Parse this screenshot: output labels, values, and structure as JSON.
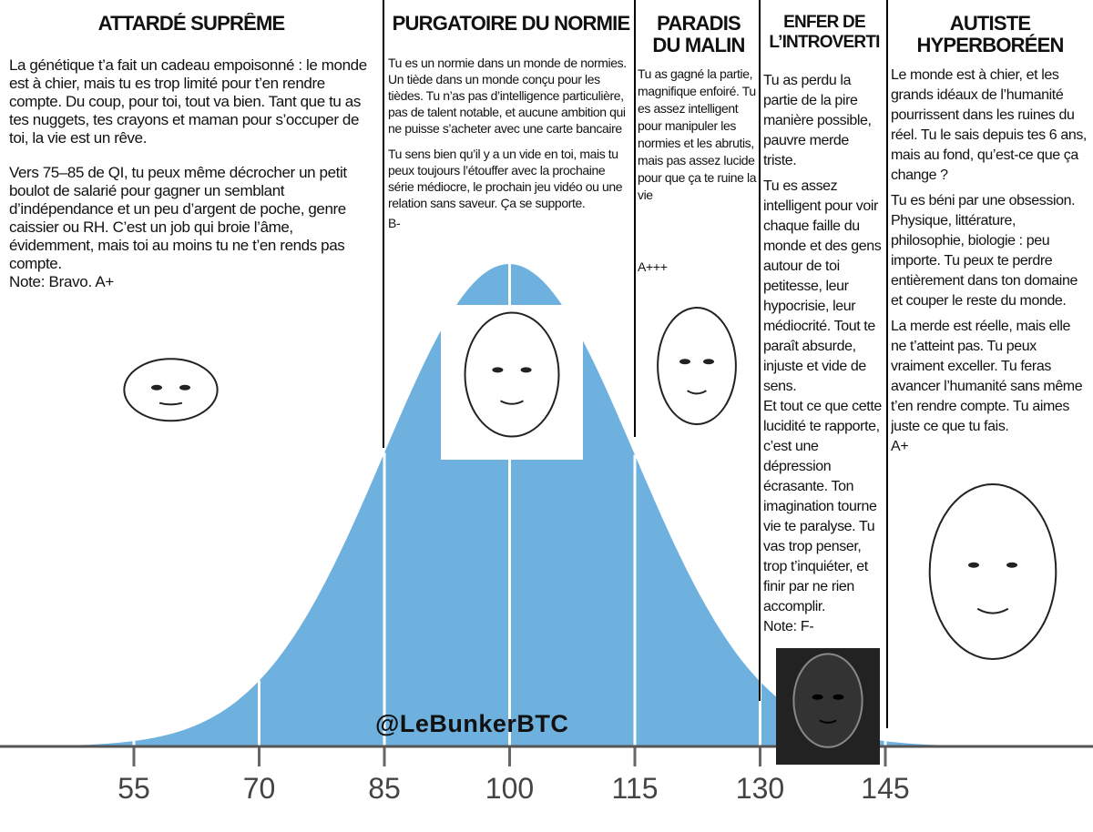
{
  "columns": [
    {
      "title": "ATTARDÉ SUPRÊME",
      "paragraphs": [
        "La génétique t’a fait un cadeau empoisonné : le monde est à chier, mais tu es trop limité pour t’en rendre compte. Du coup, pour toi, tout va bien. Tant que tu as tes nuggets, tes crayons et maman pour s’occuper de toi, la vie est un rêve.",
        "Vers 75–85 de QI, tu peux même décrocher un petit boulot de salarié pour gagner un semblant d’indépendance et un peu d’argent de poche, genre caissier ou RH. C’est un job qui broie l’âme, évidemment, mais toi au moins tu ne t’en rends pas compte."
      ],
      "grade": "Note: Bravo. A+"
    },
    {
      "title": "PURGATOIRE DU NORMIE",
      "paragraphs": [
        "Tu es un normie dans un monde de normies. Un tiède dans un monde conçu pour les tièdes. Tu n’as pas d’intelligence particulière, pas de talent notable, et aucune ambition qui ne puisse s’acheter avec une carte bancaire",
        "Tu sens bien qu’il y a un vide en toi, mais tu peux toujours l’étouffer avec la prochaine série médiocre, le prochain jeu vidéo ou une relation sans saveur. Ça se supporte."
      ],
      "grade": "B-"
    },
    {
      "title": "PARADIS DU MALIN",
      "paragraphs": [
        "Tu as gagné la partie, magnifique enfoiré. Tu es assez intelligent pour manipuler les normies et les abrutis, mais pas assez lucide pour que ça te ruine la vie"
      ],
      "grade": "A+++"
    },
    {
      "title": "ENFER DE L’INTROVERTI",
      "paragraphs": [
        "Tu as perdu la partie de la pire manière possible, pauvre merde triste.",
        "Tu es assez intelligent pour voir chaque faille du monde et des gens autour de toi petitesse, leur hypocrisie, leur médiocrité. Tout te paraît absurde, injuste et vide de sens.",
        "Et tout ce que cette lucidité te rapporte, c’est une dépression écrasante. Ton imagination tourne vie te paralyse. Tu vas trop penser, trop t’inquiéter, et finir par ne rien accomplir."
      ],
      "grade": "Note: F-"
    },
    {
      "title": "AUTISTE HYPERBORÉEN",
      "paragraphs": [
        "Le monde est à chier, et les grands idéaux de l’humanité pourrissent dans les ruines du réel. Tu le sais depuis tes 6 ans, mais au fond, qu’est-ce que ça change ?",
        "Tu es béni par une obsession. Physique, littérature, philosophie, biologie : peu importe. Tu peux te perdre entièrement dans ton domaine et couper le reste du monde.",
        "La merde est réelle, mais elle ne t’atteint pas. Tu peux vraiment exceller. Tu feras avancer l’humanité sans même t’en rendre compte. Tu aimes juste ce que tu fais."
      ],
      "grade": "A+"
    }
  ],
  "axis": {
    "ticks": [
      55,
      70,
      85,
      100,
      115,
      130,
      145
    ]
  },
  "watermark": "@LeBunkerBTC"
}
